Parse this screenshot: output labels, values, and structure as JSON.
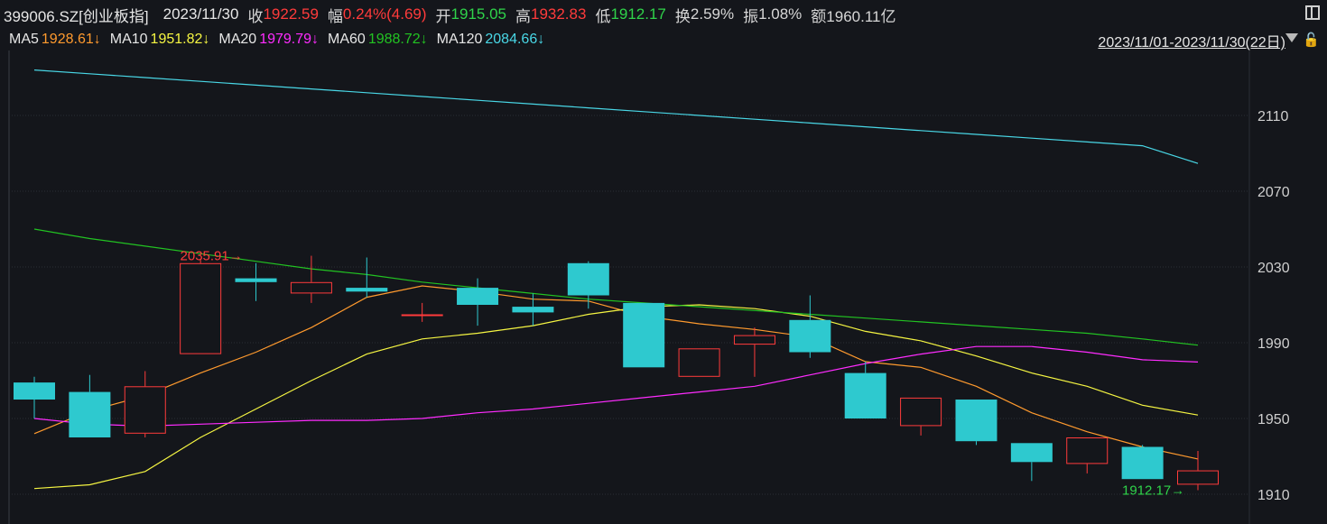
{
  "header": {
    "code": "399006.SZ[创业板指]",
    "date": "2023/11/30",
    "close_label": "收",
    "close": "1922.59",
    "change_label": "幅",
    "change": "0.24%(4.69)",
    "open_label": "开",
    "open": "1915.05",
    "high_label": "高",
    "high": "1932.83",
    "low_label": "低",
    "low": "1912.17",
    "turnover_label": "换",
    "turnover": "2.59%",
    "amplitude_label": "振",
    "amplitude": "1.08%",
    "amount_label": "额",
    "amount": "1960.11亿"
  },
  "ma_legend": [
    {
      "label": "MA5",
      "value": "1928.61↓",
      "color": "#ff9a2e"
    },
    {
      "label": "MA10",
      "value": "1951.82↓",
      "color": "#f5f542"
    },
    {
      "label": "MA20",
      "value": "1979.79↓",
      "color": "#ff2cff"
    },
    {
      "label": "MA60",
      "value": "1988.72↓",
      "color": "#22c322"
    },
    {
      "label": "MA120",
      "value": "2084.66↓",
      "color": "#49d7e6"
    }
  ],
  "range_label": "2023/11/01-2023/11/30(22日)",
  "chart_data": {
    "type": "candlestick",
    "y_ticks": [
      2110,
      2070,
      2030,
      1990,
      1950,
      1910
    ],
    "ylim": [
      1905,
      2135
    ],
    "annotations": [
      {
        "text": "2035.91→",
        "index": 4,
        "value": 2035.91,
        "color": "#ff3b3b"
      },
      {
        "text": "1912.17→",
        "index": 21,
        "value": 1912.17,
        "color": "#2fd34a"
      }
    ],
    "candles": [
      {
        "open": 1969,
        "close": 1960,
        "high": 1972,
        "low": 1950
      },
      {
        "open": 1964,
        "close": 1940,
        "high": 1973,
        "low": 1940
      },
      {
        "open": 1942,
        "close": 1967,
        "high": 1975,
        "low": 1940
      },
      {
        "open": 1984,
        "close": 2032,
        "high": 2034,
        "low": 1984
      },
      {
        "open": 2024,
        "close": 2022,
        "high": 2032,
        "low": 2012
      },
      {
        "open": 2016,
        "close": 2022,
        "high": 2035.91,
        "low": 2011
      },
      {
        "open": 2019,
        "close": 2017,
        "high": 2035,
        "low": 2014
      },
      {
        "open": 2005,
        "close": 2005,
        "high": 2011,
        "low": 2001
      },
      {
        "open": 2019,
        "close": 2010,
        "high": 2024,
        "low": 1999
      },
      {
        "open": 2009,
        "close": 2006,
        "high": 2016,
        "low": 1999
      },
      {
        "open": 2032,
        "close": 2015,
        "high": 2033,
        "low": 2008
      },
      {
        "open": 2011,
        "close": 1977,
        "high": 2011,
        "low": 1977
      },
      {
        "open": 1972,
        "close": 1987,
        "high": 1987,
        "low": 1972
      },
      {
        "open": 1989,
        "close": 1994,
        "high": 1998,
        "low": 1972
      },
      {
        "open": 2002,
        "close": 1985,
        "high": 2015,
        "low": 1982
      },
      {
        "open": 1974,
        "close": 1950,
        "high": 1980,
        "low": 1950
      },
      {
        "open": 1946,
        "close": 1961,
        "high": 1961,
        "low": 1941
      },
      {
        "open": 1960,
        "close": 1938,
        "high": 1960,
        "low": 1936
      },
      {
        "open": 1937,
        "close": 1927,
        "high": 1937,
        "low": 1917
      },
      {
        "open": 1926,
        "close": 1940,
        "high": 1940,
        "low": 1921
      },
      {
        "open": 1935,
        "close": 1918,
        "high": 1936,
        "low": 1918
      },
      {
        "open": 1915.05,
        "close": 1922.59,
        "high": 1932.83,
        "low": 1912.17
      }
    ],
    "series": [
      {
        "name": "MA5",
        "color": "#ff9a2e",
        "values": [
          1942,
          1954,
          1962,
          1974,
          1985,
          1998,
          2014,
          2020,
          2017,
          2013,
          2012,
          2004,
          2000,
          1997,
          1993,
          1980,
          1977,
          1967,
          1953,
          1943,
          1935,
          1928.61
        ]
      },
      {
        "name": "MA10",
        "color": "#f5f542",
        "values": [
          1913,
          1915,
          1922,
          1940,
          1955,
          1970,
          1984,
          1992,
          1995,
          1999,
          2005,
          2009,
          2010,
          2008,
          2004,
          1996,
          1991,
          1983,
          1974,
          1967,
          1957,
          1951.82
        ]
      },
      {
        "name": "MA20",
        "color": "#ff2cff",
        "values": [
          1950,
          1947,
          1946,
          1947,
          1948,
          1949,
          1949,
          1950,
          1953,
          1955,
          1958,
          1961,
          1964,
          1967,
          1973,
          1979,
          1984,
          1988,
          1988,
          1985,
          1981,
          1979.79
        ]
      },
      {
        "name": "MA60",
        "color": "#22c322",
        "values": [
          2050,
          2045,
          2041,
          2037,
          2033,
          2029,
          2026,
          2022,
          2019,
          2016,
          2013,
          2011,
          2009,
          2007,
          2005,
          2003,
          2001,
          1999,
          1997,
          1995,
          1992,
          1988.72
        ]
      },
      {
        "name": "MA120",
        "color": "#49d7e6",
        "values": [
          2134,
          2132,
          2130,
          2128,
          2126,
          2124,
          2122,
          2120,
          2118,
          2116,
          2114,
          2112,
          2110,
          2108,
          2106,
          2104,
          2102,
          2100,
          2098,
          2096,
          2094,
          2084.66
        ]
      }
    ],
    "colors": {
      "up": "#ff3b3b",
      "down": "#2ec9cf",
      "grid": "#2a2d35",
      "axis_text": "#cfcfcf"
    }
  }
}
